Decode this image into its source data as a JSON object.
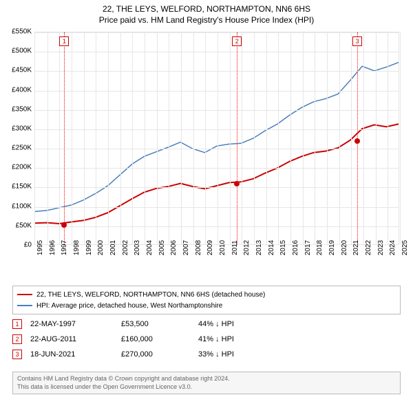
{
  "titles": {
    "line1": "22, THE LEYS, WELFORD, NORTHAMPTON, NN6 6HS",
    "line2": "Price paid vs. HM Land Registry's House Price Index (HPI)"
  },
  "chart": {
    "type": "line",
    "background_color": "#ffffff",
    "grid_color": "#e6e6e6",
    "y": {
      "min": 0,
      "max": 550000,
      "step": 50000,
      "labels": [
        "£0",
        "£50K",
        "£100K",
        "£150K",
        "£200K",
        "£250K",
        "£300K",
        "£350K",
        "£400K",
        "£450K",
        "£500K",
        "£550K"
      ]
    },
    "x": {
      "min": 1995,
      "max": 2025,
      "labels": [
        "1995",
        "1996",
        "1997",
        "1998",
        "1999",
        "2000",
        "2001",
        "2002",
        "2003",
        "2004",
        "2005",
        "2006",
        "2007",
        "2008",
        "2009",
        "2010",
        "2011",
        "2012",
        "2013",
        "2014",
        "2015",
        "2016",
        "2017",
        "2018",
        "2019",
        "2020",
        "2021",
        "2022",
        "2023",
        "2024",
        "2025"
      ]
    },
    "series": [
      {
        "name": "price_paid",
        "color": "#cc0000",
        "line_width": 2,
        "points": [
          [
            1995,
            55000
          ],
          [
            1996,
            56000
          ],
          [
            1997,
            53500
          ],
          [
            1998,
            58000
          ],
          [
            1999,
            62000
          ],
          [
            2000,
            70000
          ],
          [
            2001,
            82000
          ],
          [
            2002,
            100000
          ],
          [
            2003,
            118000
          ],
          [
            2004,
            135000
          ],
          [
            2005,
            145000
          ],
          [
            2006,
            150000
          ],
          [
            2007,
            158000
          ],
          [
            2008,
            150000
          ],
          [
            2009,
            144000
          ],
          [
            2010,
            152000
          ],
          [
            2011,
            160000
          ],
          [
            2012,
            162000
          ],
          [
            2013,
            170000
          ],
          [
            2014,
            185000
          ],
          [
            2015,
            198000
          ],
          [
            2016,
            215000
          ],
          [
            2017,
            228000
          ],
          [
            2018,
            238000
          ],
          [
            2019,
            242000
          ],
          [
            2020,
            250000
          ],
          [
            2021,
            270000
          ],
          [
            2022,
            300000
          ],
          [
            2023,
            310000
          ],
          [
            2024,
            305000
          ],
          [
            2025,
            312000
          ]
        ]
      },
      {
        "name": "hpi",
        "color": "#4a7ebb",
        "line_width": 1.5,
        "points": [
          [
            1995,
            85000
          ],
          [
            1996,
            88000
          ],
          [
            1997,
            95000
          ],
          [
            1998,
            102000
          ],
          [
            1999,
            115000
          ],
          [
            2000,
            132000
          ],
          [
            2001,
            152000
          ],
          [
            2002,
            180000
          ],
          [
            2003,
            208000
          ],
          [
            2004,
            228000
          ],
          [
            2005,
            240000
          ],
          [
            2006,
            252000
          ],
          [
            2007,
            265000
          ],
          [
            2008,
            248000
          ],
          [
            2009,
            238000
          ],
          [
            2010,
            255000
          ],
          [
            2011,
            260000
          ],
          [
            2012,
            262000
          ],
          [
            2013,
            275000
          ],
          [
            2014,
            295000
          ],
          [
            2015,
            312000
          ],
          [
            2016,
            335000
          ],
          [
            2017,
            355000
          ],
          [
            2018,
            370000
          ],
          [
            2019,
            378000
          ],
          [
            2020,
            390000
          ],
          [
            2021,
            425000
          ],
          [
            2022,
            462000
          ],
          [
            2023,
            450000
          ],
          [
            2024,
            460000
          ],
          [
            2025,
            472000
          ]
        ]
      }
    ],
    "markers": [
      {
        "num": "1",
        "year": 1997.4
      },
      {
        "num": "2",
        "year": 2011.6
      },
      {
        "num": "3",
        "year": 2021.5
      }
    ],
    "sale_dots": [
      {
        "year": 1997.4,
        "value": 53500
      },
      {
        "year": 2011.6,
        "value": 160000
      },
      {
        "year": 2021.5,
        "value": 270000
      }
    ]
  },
  "legend": {
    "items": [
      {
        "color": "#cc0000",
        "label": "22, THE LEYS, WELFORD, NORTHAMPTON, NN6 6HS (detached house)"
      },
      {
        "color": "#4a7ebb",
        "label": "HPI: Average price, detached house, West Northamptonshire"
      }
    ]
  },
  "sales": [
    {
      "num": "1",
      "date": "22-MAY-1997",
      "price": "£53,500",
      "diff": "44% ↓ HPI"
    },
    {
      "num": "2",
      "date": "22-AUG-2011",
      "price": "£160,000",
      "diff": "41% ↓ HPI"
    },
    {
      "num": "3",
      "date": "18-JUN-2021",
      "price": "£270,000",
      "diff": "33% ↓ HPI"
    }
  ],
  "footer": {
    "line1": "Contains HM Land Registry data © Crown copyright and database right 2024.",
    "line2": "This data is licensed under the Open Government Licence v3.0."
  }
}
